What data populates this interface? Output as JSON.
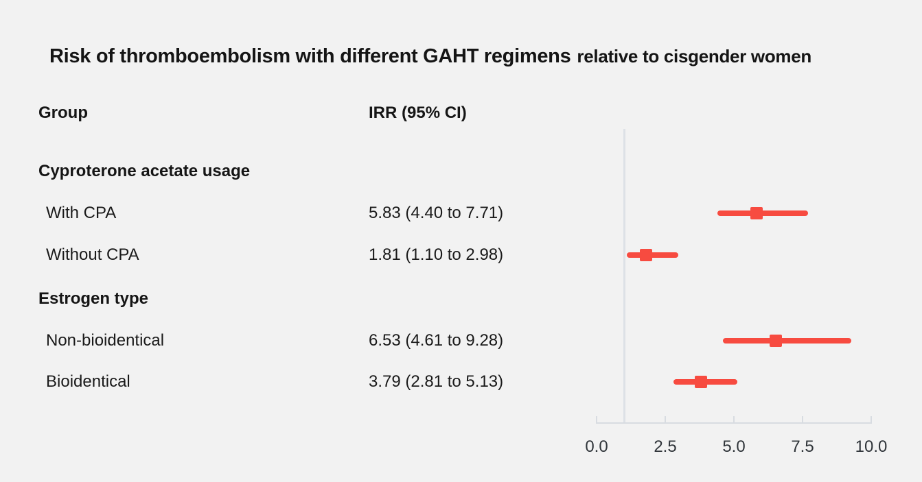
{
  "title": {
    "main": "Risk of thromboembolism with different GAHT regimens",
    "suffix": "relative to cisgender women"
  },
  "columns": {
    "group": "Group",
    "irr": "IRR (95% CI)"
  },
  "colors": {
    "marker": "#f74b40",
    "axis_line": "#d8dce1",
    "reference_line": "#dde1e6",
    "background": "#f2f2f2"
  },
  "chart_data": {
    "type": "forest",
    "title": "Risk of thromboembolism with different GAHT regimens relative to cisgender women",
    "xlabel": "",
    "ylabel": "",
    "x_range": [
      0,
      10
    ],
    "x_ticks": [
      0.0,
      2.5,
      5.0,
      7.5,
      10.0
    ],
    "x_tick_labels": [
      "0.0",
      "2.5",
      "5.0",
      "7.5",
      "10.0"
    ],
    "reference_line": 1.0,
    "grid": false,
    "legend": false,
    "groups": [
      {
        "section": "Cyproterone acetate usage",
        "items": [
          {
            "label": "With CPA",
            "irr": 5.83,
            "ci_low": 4.4,
            "ci_high": 7.71,
            "irr_display": "5.83 (4.40 to 7.71)"
          },
          {
            "label": "Without CPA",
            "irr": 1.81,
            "ci_low": 1.1,
            "ci_high": 2.98,
            "irr_display": "1.81 (1.10 to 2.98)"
          }
        ]
      },
      {
        "section": "Estrogen type",
        "items": [
          {
            "label": "Non-bioidentical",
            "irr": 6.53,
            "ci_low": 4.61,
            "ci_high": 9.28,
            "irr_display": "6.53 (4.61 to 9.28)"
          },
          {
            "label": "Bioidentical",
            "irr": 3.79,
            "ci_low": 2.81,
            "ci_high": 5.13,
            "irr_display": "3.79 (2.81 to 5.13)"
          }
        ]
      }
    ]
  }
}
